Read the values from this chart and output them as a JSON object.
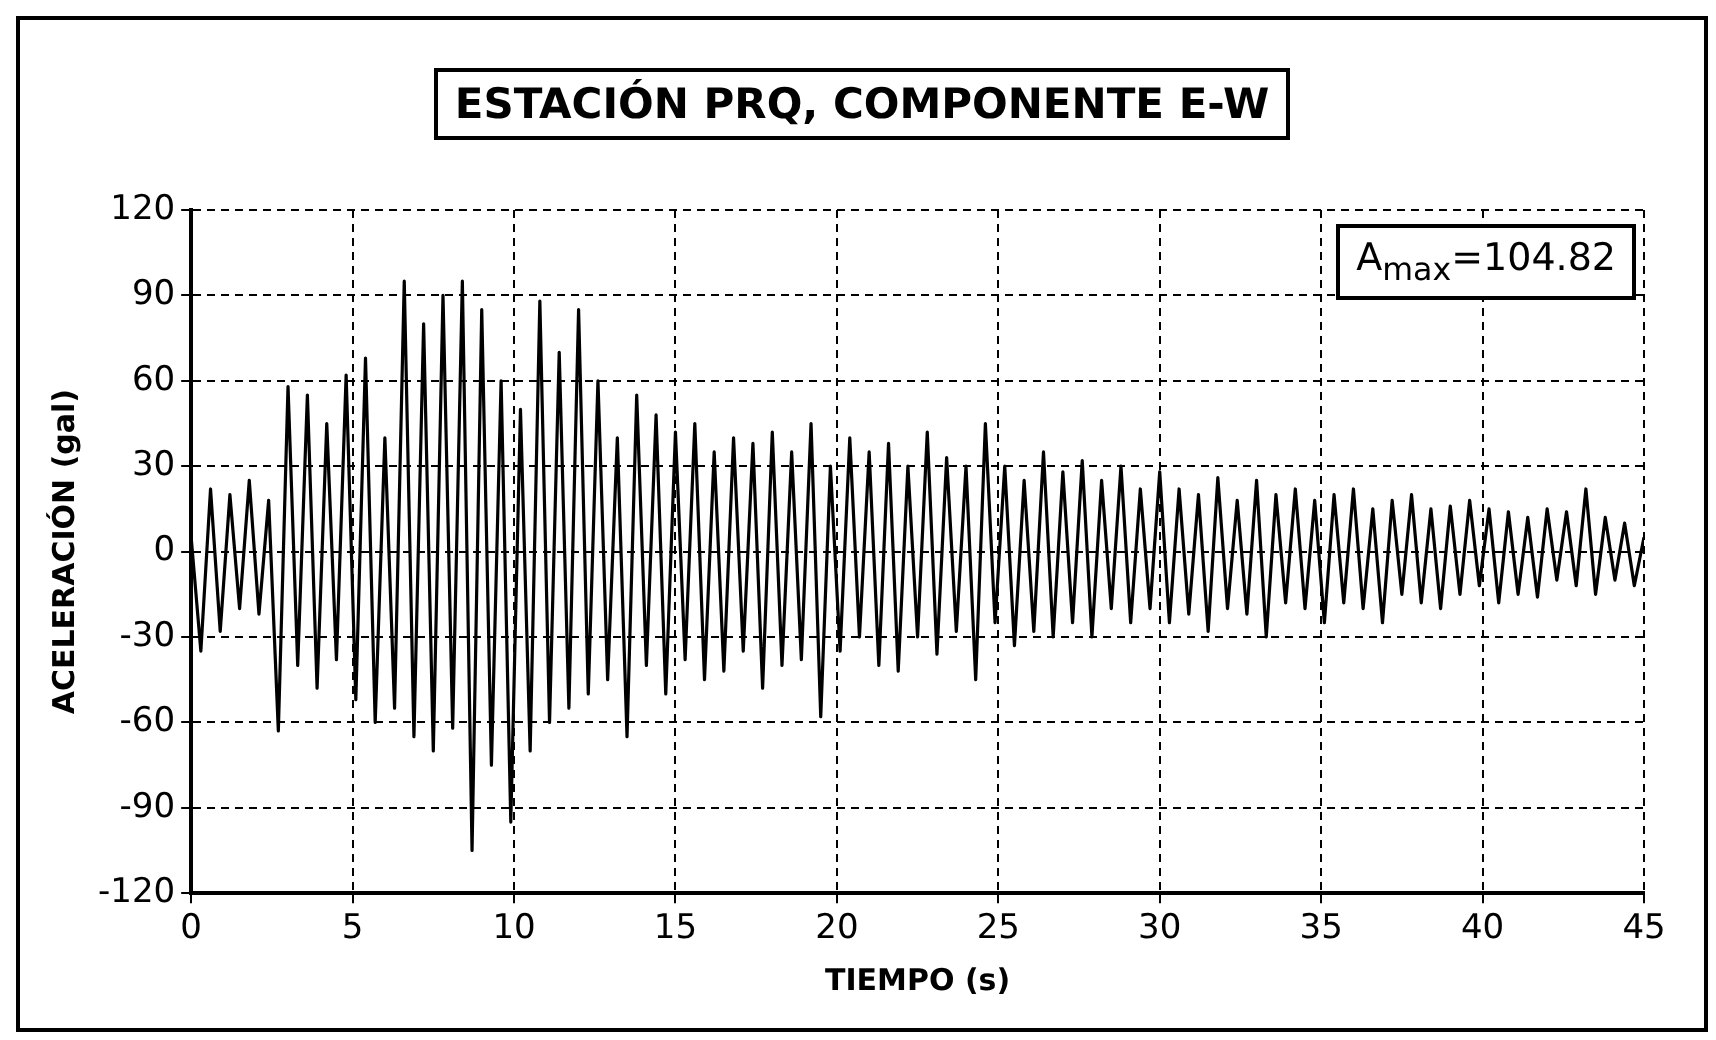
{
  "chart_data": {
    "type": "line",
    "title": "ESTACIÓN PRQ, COMPONENTE E-W",
    "xlabel": "TIEMPO (s)",
    "ylabel": "ACELERACIÓN (gal)",
    "annotations": [
      "A$_{max}$=104.82"
    ],
    "x": [
      0,
      0.3,
      0.6,
      0.9,
      1.2,
      1.5,
      1.8,
      2.1,
      2.4,
      2.7,
      3,
      3.3,
      3.6,
      3.9,
      4.2,
      4.5,
      4.8,
      5.1,
      5.4,
      5.7,
      6,
      6.3,
      6.6,
      6.9,
      7.2,
      7.5,
      7.8,
      8.1,
      8.4,
      8.7,
      9,
      9.3,
      9.6,
      9.9,
      10.2,
      10.5,
      10.8,
      11.1,
      11.4,
      11.7,
      12,
      12.3,
      12.6,
      12.9,
      13.2,
      13.5,
      13.8,
      14.1,
      14.4,
      14.7,
      15,
      15.3,
      15.6,
      15.9,
      16.2,
      16.5,
      16.8,
      17.1,
      17.4,
      17.7,
      18,
      18.3,
      18.6,
      18.9,
      19.2,
      19.5,
      19.8,
      20.1,
      20.4,
      20.7,
      21,
      21.3,
      21.6,
      21.9,
      22.2,
      22.5,
      22.8,
      23.1,
      23.4,
      23.7,
      24,
      24.3,
      24.6,
      24.9,
      25.2,
      25.5,
      25.8,
      26.1,
      26.4,
      26.7,
      27,
      27.3,
      27.6,
      27.9,
      28.2,
      28.5,
      28.8,
      29.1,
      29.4,
      29.7,
      30,
      30.3,
      30.6,
      30.9,
      31.2,
      31.5,
      31.8,
      32.1,
      32.4,
      32.7,
      33,
      33.3,
      33.6,
      33.9,
      34.2,
      34.5,
      34.8,
      35.1,
      35.4,
      35.7,
      36,
      36.3,
      36.6,
      36.9,
      37.2,
      37.5,
      37.8,
      38.1,
      38.4,
      38.7,
      39,
      39.3,
      39.6,
      39.9,
      40.2,
      40.5,
      40.8,
      41.1,
      41.4,
      41.7,
      42,
      42.3,
      42.6,
      42.9,
      43.2,
      43.5,
      43.8,
      44.1,
      44.4,
      44.7,
      45
    ],
    "series": [
      {
        "color": "#000000",
        "values": [
          5,
          -35,
          22,
          -28,
          20,
          -20,
          25,
          -22,
          18,
          -63,
          58,
          -40,
          55,
          -48,
          45,
          -38,
          62,
          -52,
          68,
          -60,
          40,
          -55,
          95,
          -65,
          80,
          -70,
          90,
          -62,
          95,
          -105,
          85,
          -75,
          60,
          -95,
          50,
          -70,
          88,
          -60,
          70,
          -55,
          85,
          -50,
          60,
          -45,
          40,
          -65,
          55,
          -40,
          48,
          -50,
          42,
          -38,
          45,
          -45,
          35,
          -42,
          40,
          -35,
          38,
          -48,
          42,
          -40,
          35,
          -38,
          45,
          -58,
          30,
          -35,
          40,
          -30,
          35,
          -40,
          38,
          -42,
          30,
          -30,
          42,
          -36,
          33,
          -28,
          30,
          -45,
          45,
          -25,
          30,
          -33,
          25,
          -28,
          35,
          -30,
          28,
          -25,
          32,
          -30,
          25,
          -20,
          30,
          -25,
          22,
          -20,
          28,
          -25,
          22,
          -22,
          20,
          -28,
          26,
          -20,
          18,
          -22,
          25,
          -30,
          20,
          -18,
          22,
          -20,
          18,
          -25,
          20,
          -18,
          22,
          -20,
          15,
          -25,
          18,
          -15,
          20,
          -18,
          15,
          -20,
          16,
          -15,
          18,
          -12,
          15,
          -18,
          14,
          -15,
          12,
          -16,
          15,
          -10,
          14,
          -12,
          22,
          -15,
          12,
          -10,
          10,
          -12,
          5
        ]
      }
    ],
    "xlim": [
      0,
      45
    ],
    "xticks": [
      0,
      5,
      10,
      15,
      20,
      25,
      30,
      35,
      40,
      45
    ],
    "ylim": [
      -120,
      120
    ],
    "yticks": [
      -120,
      -90,
      -60,
      -30,
      0,
      30,
      60,
      90,
      120
    ],
    "grid": true,
    "line_style": "solid"
  }
}
